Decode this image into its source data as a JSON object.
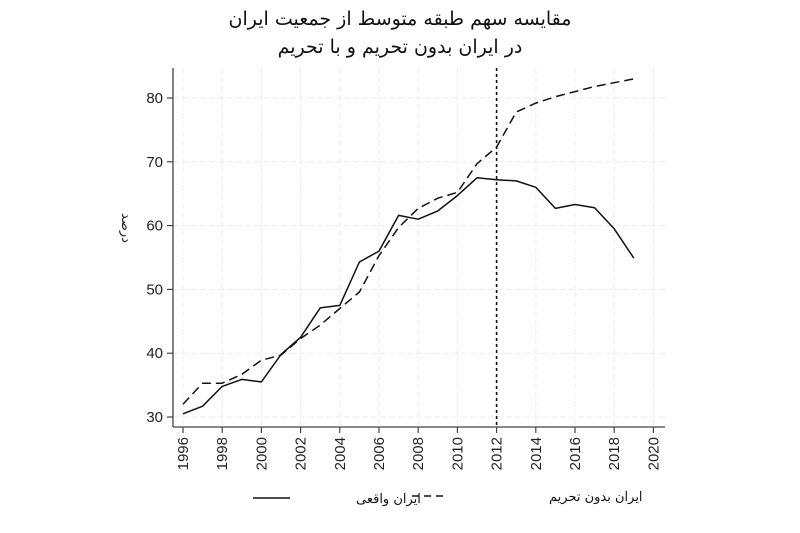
{
  "chart_data": {
    "type": "line",
    "title": "مقایسه سهم طبقه متوسط از جمعیت ایران",
    "subtitle": "در ایران بدون تحریم و با تحریم",
    "xlabel": "",
    "ylabel": "درصد",
    "xlim": [
      1996,
      2020
    ],
    "ylim": [
      30,
      83
    ],
    "x_ticks": [
      1996,
      1998,
      2000,
      2002,
      2004,
      2006,
      2008,
      2010,
      2012,
      2014,
      2016,
      2018,
      2020
    ],
    "y_ticks": [
      30,
      40,
      50,
      60,
      70,
      80
    ],
    "grid": true,
    "legend_position": "bottom",
    "annotations": [
      {
        "type": "vertical-dotted-line",
        "x": 2012
      }
    ],
    "x": [
      1996,
      1997,
      1998,
      1999,
      2000,
      2001,
      2002,
      2003,
      2004,
      2005,
      2006,
      2007,
      2008,
      2009,
      2010,
      2011,
      2012,
      2013,
      2014,
      2015,
      2016,
      2017,
      2018,
      2019
    ],
    "series": [
      {
        "name": "ایران واقعی",
        "style": "solid",
        "values": [
          30.5,
          31.7,
          34.8,
          35.9,
          35.5,
          39.8,
          42.5,
          47.1,
          47.5,
          54.3,
          56.0,
          61.6,
          61.0,
          62.3,
          64.7,
          67.5,
          67.2,
          67.0,
          66.0,
          62.7,
          63.3,
          62.8,
          59.5,
          54.9
        ]
      },
      {
        "name": "ایران بدون تحریم",
        "style": "dashed",
        "values": [
          32.0,
          35.3,
          35.3,
          36.7,
          38.9,
          39.7,
          42.3,
          44.4,
          47.0,
          49.6,
          55.3,
          59.7,
          62.7,
          64.3,
          65.2,
          69.7,
          72.3,
          77.8,
          79.2,
          80.2,
          81.0,
          81.8,
          82.4,
          83.0
        ]
      }
    ]
  },
  "legend": {
    "actual_label": "ایران واقعی",
    "no_sanctions_label": "ایران بدون تحریم"
  }
}
